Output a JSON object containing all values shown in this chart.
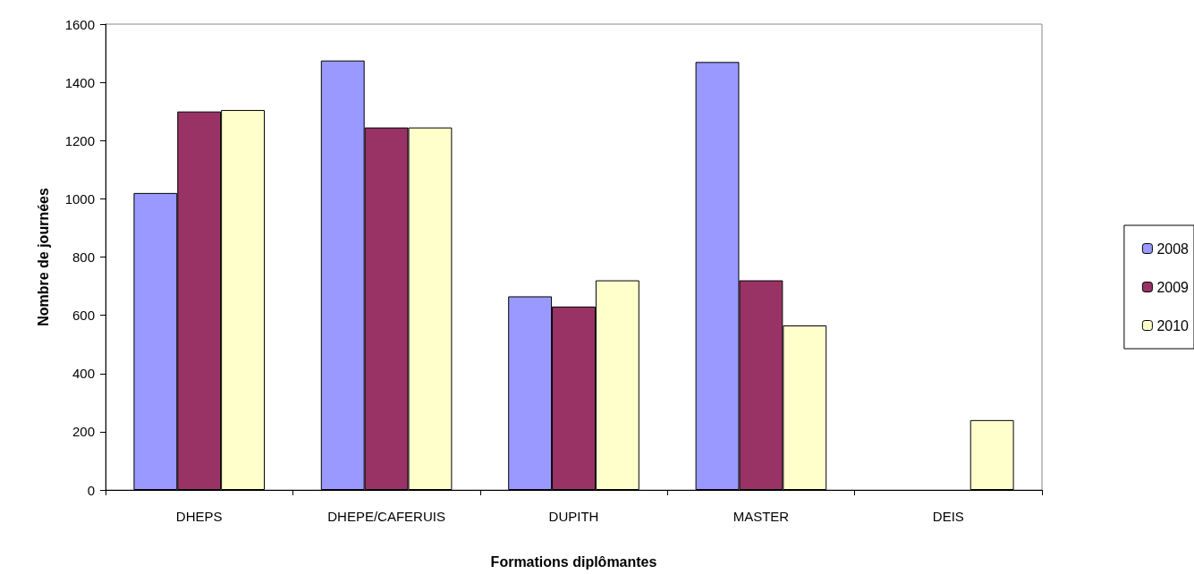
{
  "chart_data": {
    "type": "bar",
    "xlabel": "Formations diplômantes",
    "ylabel": "Nombre de journées",
    "categories": [
      "DHEPS",
      "DHEPE/CAFERUIS",
      "DUPITH",
      "MASTER",
      "DEIS"
    ],
    "series": [
      {
        "name": "2008",
        "color": "#9999ff",
        "values": [
          1020,
          1475,
          665,
          1470,
          null
        ]
      },
      {
        "name": "2009",
        "color": "#993366",
        "values": [
          1300,
          1245,
          630,
          720,
          null
        ]
      },
      {
        "name": "2010",
        "color": "#ffffcc",
        "values": [
          1305,
          1245,
          720,
          565,
          240
        ]
      }
    ],
    "ylim": [
      0,
      1600
    ],
    "yticks": [
      0,
      200,
      400,
      600,
      800,
      1000,
      1200,
      1400,
      1600
    ],
    "grid": false,
    "legend": "right"
  }
}
